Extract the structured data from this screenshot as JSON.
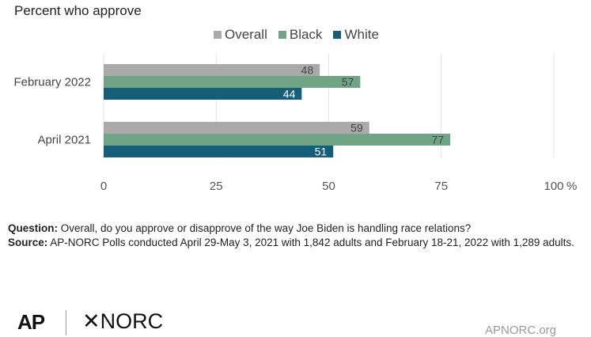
{
  "subtitle": "Percent who approve",
  "legend": [
    {
      "label": "Overall",
      "color": "#aaaaaa"
    },
    {
      "label": "Black",
      "color": "#6fa585"
    },
    {
      "label": "White",
      "color": "#155e7a"
    }
  ],
  "chart_data": {
    "type": "bar",
    "orientation": "horizontal",
    "categories": [
      "February 2022",
      "April 2021"
    ],
    "series": [
      {
        "name": "Overall",
        "values": [
          48,
          59
        ],
        "color": "#aaaaaa"
      },
      {
        "name": "Black",
        "values": [
          57,
          77
        ],
        "color": "#6fa585"
      },
      {
        "name": "White",
        "values": [
          44,
          51
        ],
        "color": "#155e7a"
      }
    ],
    "xlim": [
      0,
      100
    ],
    "xticks": [
      "0",
      "25",
      "50",
      "75",
      "100"
    ],
    "xunit": "%",
    "grid": true
  },
  "notes": {
    "question_label": "Question:",
    "question_text": " Overall, do you approve or disapprove of the way Joe Biden is handling race relations?",
    "source_label": "Source:",
    "source_text": "  AP-NORC Polls conducted April 29-May 3, 2021 with 1,842 adults and February 18-21, 2022 with 1,289 adults."
  },
  "logos": {
    "ap": "AP",
    "norc": "✕NORC",
    "site": "APNORC.org"
  }
}
